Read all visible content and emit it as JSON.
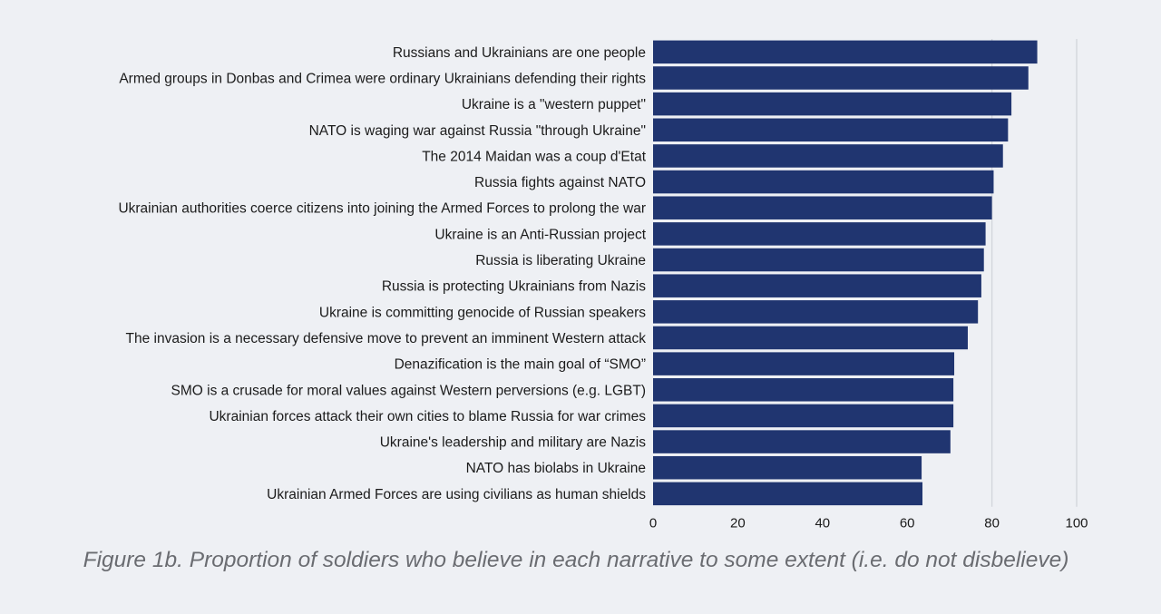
{
  "chart_data": {
    "type": "bar",
    "orientation": "horizontal",
    "caption": "Figure 1b. Proportion of soldiers who believe in each narrative to some extent (i.e. do not disbelieve)",
    "categories": [
      "Russians and Ukrainians are one people",
      "Armed groups in Donbas and Crimea were ordinary Ukrainians defending their rights",
      "Ukraine is a \"western puppet\"",
      "NATO is waging war against Russia \"through Ukraine\"",
      "The 2014 Maidan was a coup d'Etat",
      "Russia fights against NATO",
      "Ukrainian authorities coerce citizens into joining the Armed Forces to prolong the war",
      "Ukraine is an Anti-Russian project",
      "Russia is liberating Ukraine",
      "Russia is protecting Ukrainians from Nazis",
      "Ukraine is committing genocide of Russian speakers",
      "The invasion is a necessary defensive move to prevent an imminent Western attack",
      "Denazification is the main goal of “SMO”",
      "SMO is a crusade for moral values against Western perversions (e.g. LGBT)",
      "Ukrainian forces attack their own cities to blame Russia for war crimes",
      "Ukraine's leadership and military are Nazis",
      "NATO has biolabs in Ukraine",
      "Ukrainian Armed Forces are using civilians as human shields"
    ],
    "values": [
      90.7,
      88.6,
      84.6,
      83.8,
      82.6,
      80.4,
      80.0,
      78.5,
      78.1,
      77.5,
      76.7,
      74.3,
      71.1,
      70.9,
      70.9,
      70.2,
      63.4,
      63.6
    ],
    "xlim": [
      0,
      100
    ],
    "xticks": [
      0,
      20,
      40,
      60,
      80,
      100
    ],
    "xtick_labels": [
      "0",
      "20",
      "40",
      "60",
      "80",
      "100"
    ],
    "grid": "vertical at 80 and 100",
    "gridlines": [
      80,
      100
    ],
    "colors": {
      "bar": "#203570",
      "grid": "#d3d6dc",
      "background": "#eef0f4",
      "caption": "#6a6c71"
    }
  }
}
